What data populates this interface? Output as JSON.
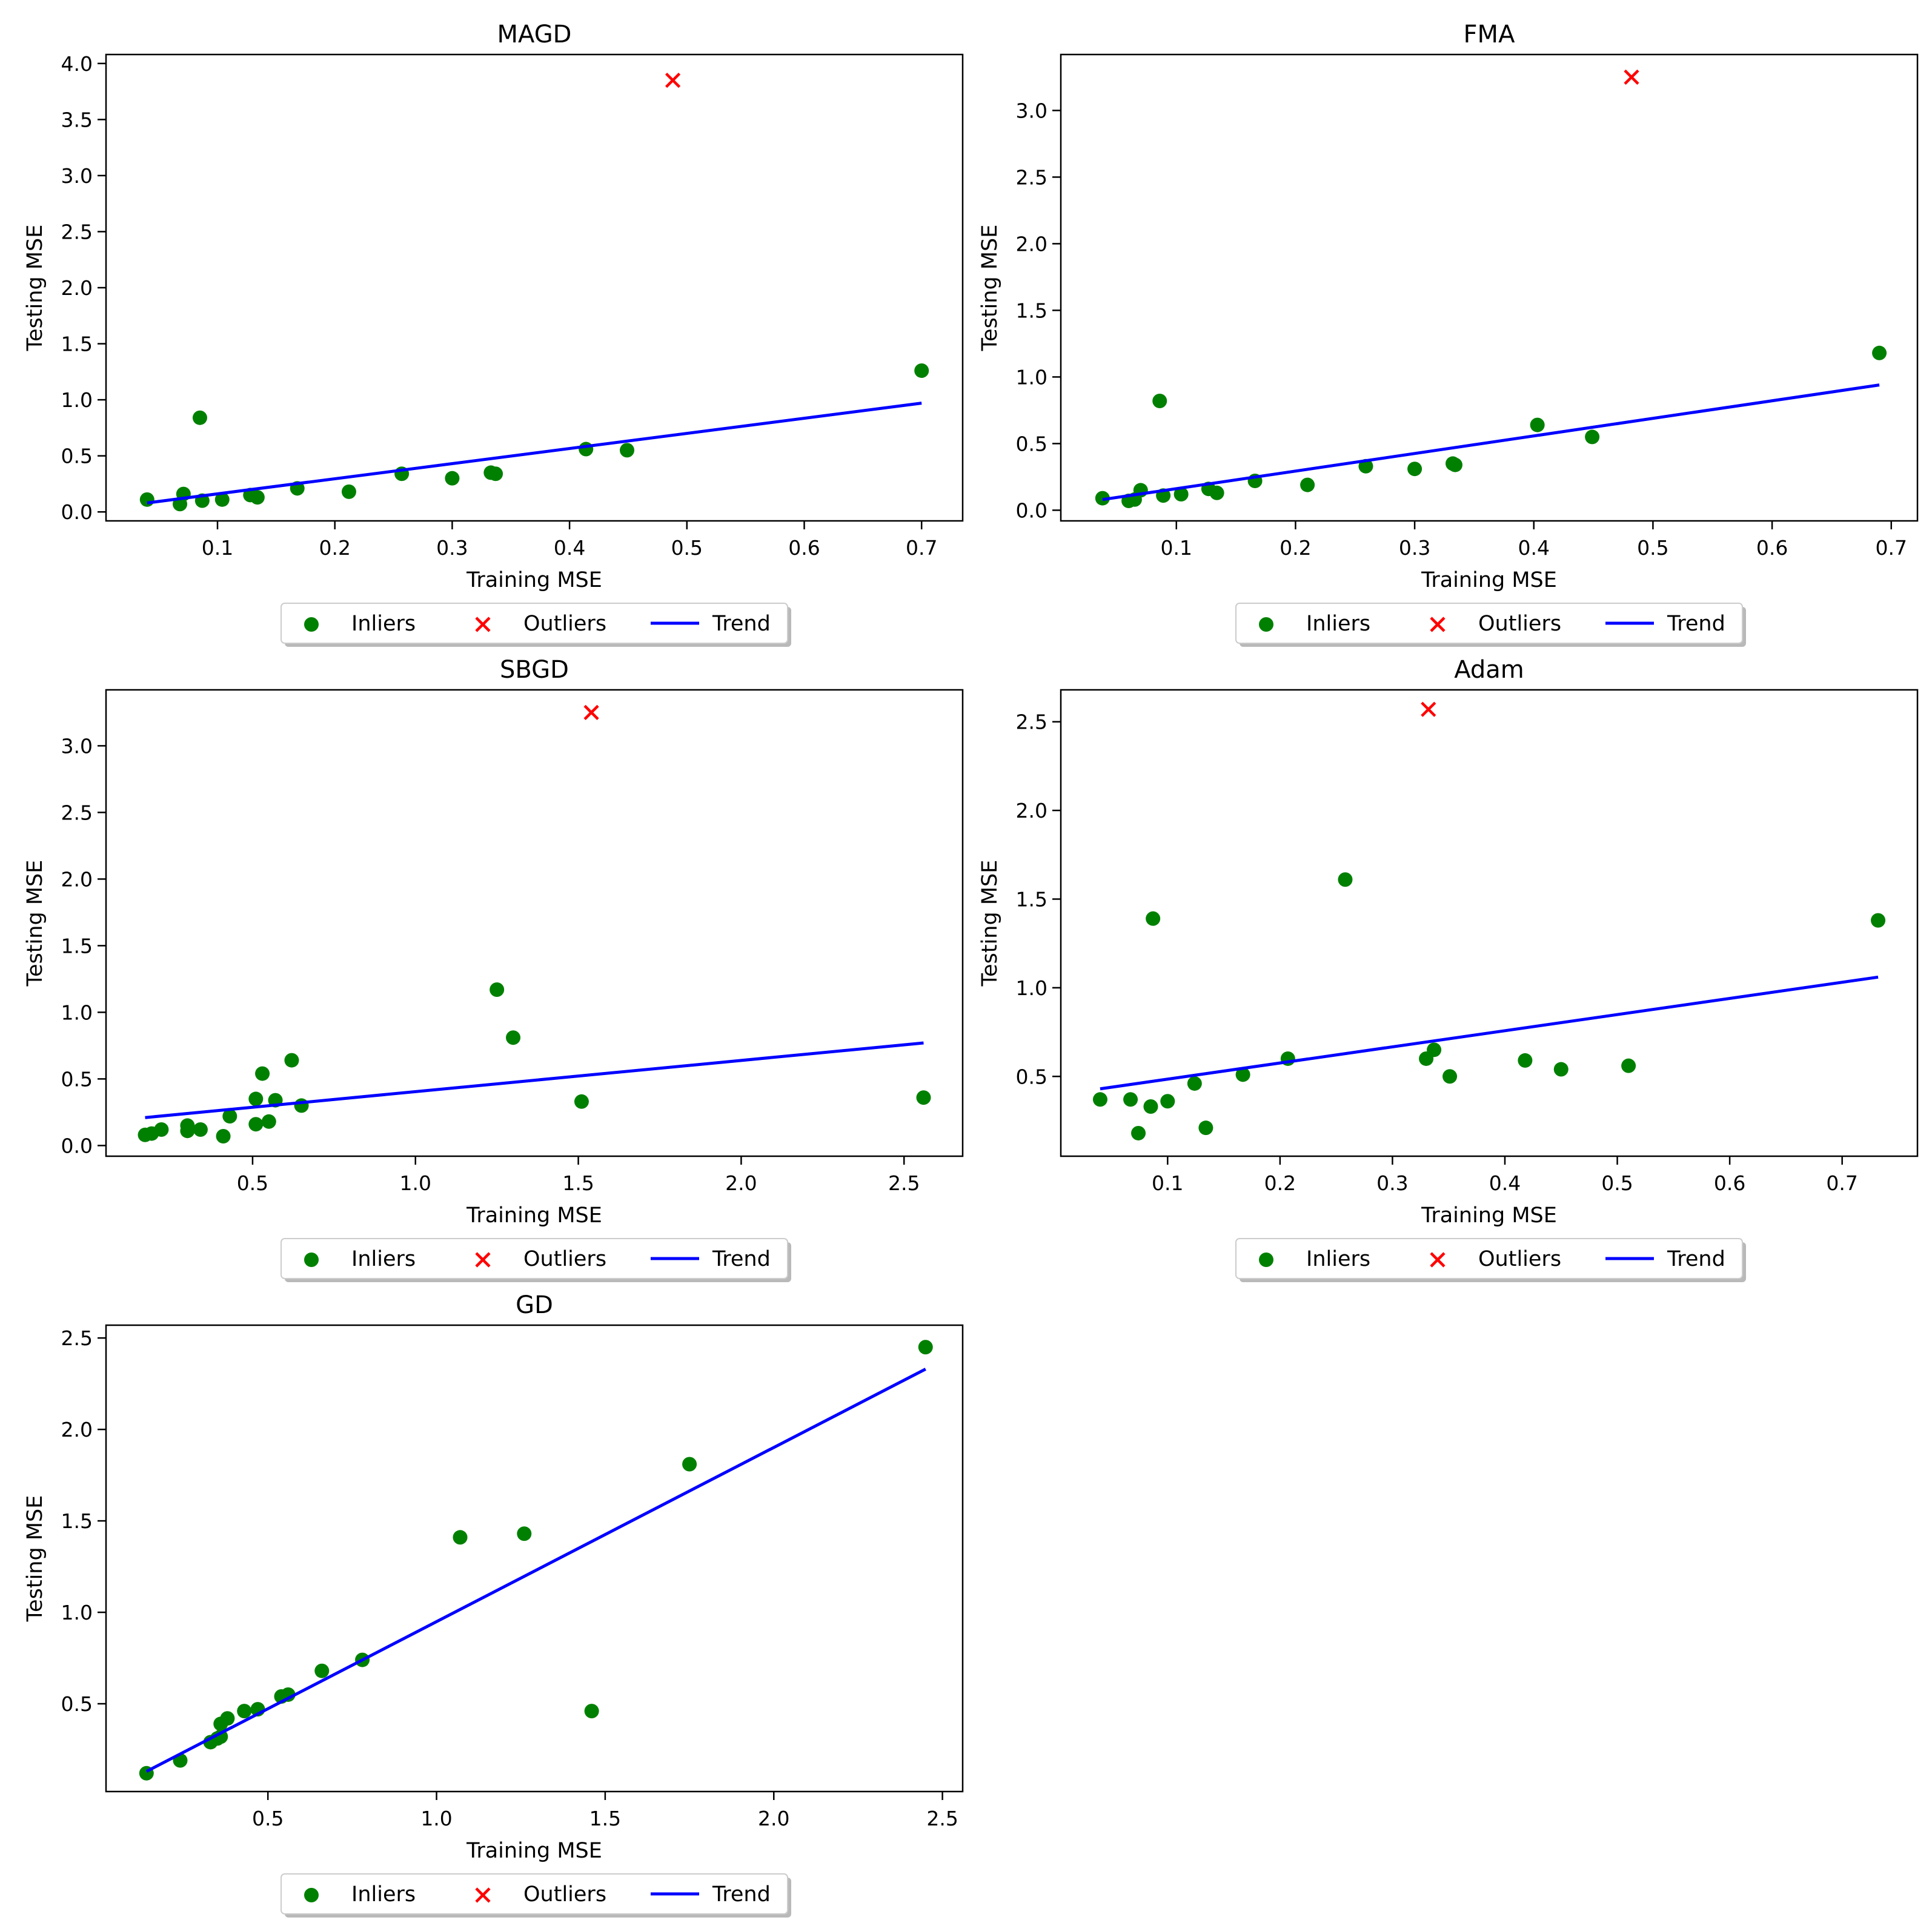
{
  "colors": {
    "inlier": "#008000",
    "outlier": "#ff0000",
    "trend": "#0000ff",
    "axis": "#000000",
    "legend_border": "#cccccc",
    "legend_shadow": "#7f7f7f"
  },
  "legend": {
    "inliers_label": "Inliers",
    "outliers_label": "Outliers",
    "trend_label": "Trend",
    "placement": "below-center"
  },
  "chart_data": [
    {
      "type": "scatter",
      "title": "MAGD",
      "xlabel": "Training MSE",
      "ylabel": "Testing MSE",
      "xlim": [
        0.005,
        0.735
      ],
      "ylim": [
        -0.08,
        4.08
      ],
      "xticks": [
        0.1,
        0.2,
        0.3,
        0.4,
        0.5,
        0.6,
        0.7
      ],
      "xtick_labels": [
        "0.1",
        "0.2",
        "0.3",
        "0.4",
        "0.5",
        "0.6",
        "0.7"
      ],
      "yticks": [
        0.0,
        0.5,
        1.0,
        1.5,
        2.0,
        2.5,
        3.0,
        3.5,
        4.0
      ],
      "ytick_labels": [
        "0.0",
        "0.5",
        "1.0",
        "1.5",
        "2.0",
        "2.5",
        "3.0",
        "3.5",
        "4.0"
      ],
      "inliers": [
        [
          0.04,
          0.11
        ],
        [
          0.068,
          0.07
        ],
        [
          0.071,
          0.16
        ],
        [
          0.085,
          0.84
        ],
        [
          0.087,
          0.1
        ],
        [
          0.104,
          0.11
        ],
        [
          0.128,
          0.15
        ],
        [
          0.134,
          0.13
        ],
        [
          0.168,
          0.21
        ],
        [
          0.212,
          0.18
        ],
        [
          0.257,
          0.34
        ],
        [
          0.3,
          0.3
        ],
        [
          0.333,
          0.35
        ],
        [
          0.337,
          0.34
        ],
        [
          0.414,
          0.56
        ],
        [
          0.449,
          0.55
        ],
        [
          0.7,
          1.26
        ]
      ],
      "outliers": [
        [
          0.488,
          3.85
        ]
      ],
      "trend": [
        [
          0.04,
          0.08
        ],
        [
          0.7,
          0.97
        ]
      ]
    },
    {
      "type": "scatter",
      "title": "FMA",
      "xlabel": "Training MSE",
      "ylabel": "Testing MSE",
      "xlim": [
        0.003,
        0.722
      ],
      "ylim": [
        -0.08,
        3.42
      ],
      "xticks": [
        0.1,
        0.2,
        0.3,
        0.4,
        0.5,
        0.6,
        0.7
      ],
      "xtick_labels": [
        "0.1",
        "0.2",
        "0.3",
        "0.4",
        "0.5",
        "0.6",
        "0.7"
      ],
      "yticks": [
        0.0,
        0.5,
        1.0,
        1.5,
        2.0,
        2.5,
        3.0
      ],
      "ytick_labels": [
        "0.0",
        "0.5",
        "1.0",
        "1.5",
        "2.0",
        "2.5",
        "3.0"
      ],
      "inliers": [
        [
          0.038,
          0.09
        ],
        [
          0.06,
          0.07
        ],
        [
          0.065,
          0.08
        ],
        [
          0.07,
          0.15
        ],
        [
          0.086,
          0.82
        ],
        [
          0.089,
          0.11
        ],
        [
          0.104,
          0.12
        ],
        [
          0.127,
          0.16
        ],
        [
          0.134,
          0.13
        ],
        [
          0.166,
          0.22
        ],
        [
          0.21,
          0.19
        ],
        [
          0.259,
          0.33
        ],
        [
          0.3,
          0.31
        ],
        [
          0.332,
          0.35
        ],
        [
          0.334,
          0.34
        ],
        [
          0.403,
          0.64
        ],
        [
          0.449,
          0.55
        ],
        [
          0.69,
          1.18
        ]
      ],
      "outliers": [
        [
          0.482,
          3.25
        ]
      ],
      "trend": [
        [
          0.038,
          0.08
        ],
        [
          0.69,
          0.94
        ]
      ]
    },
    {
      "type": "scatter",
      "title": "SBGD",
      "xlabel": "Training MSE",
      "ylabel": "Testing MSE",
      "xlim": [
        0.05,
        2.68
      ],
      "ylim": [
        -0.08,
        3.42
      ],
      "xticks": [
        0.5,
        1.0,
        1.5,
        2.0,
        2.5
      ],
      "xtick_labels": [
        "0.5",
        "1.0",
        "1.5",
        "2.0",
        "2.5"
      ],
      "yticks": [
        0.0,
        0.5,
        1.0,
        1.5,
        2.0,
        2.5,
        3.0
      ],
      "ytick_labels": [
        "0.0",
        "0.5",
        "1.0",
        "1.5",
        "2.0",
        "2.5",
        "3.0"
      ],
      "inliers": [
        [
          0.17,
          0.08
        ],
        [
          0.19,
          0.09
        ],
        [
          0.22,
          0.12
        ],
        [
          0.3,
          0.15
        ],
        [
          0.3,
          0.11
        ],
        [
          0.34,
          0.12
        ],
        [
          0.41,
          0.07
        ],
        [
          0.43,
          0.22
        ],
        [
          0.51,
          0.35
        ],
        [
          0.51,
          0.16
        ],
        [
          0.53,
          0.54
        ],
        [
          0.55,
          0.18
        ],
        [
          0.57,
          0.34
        ],
        [
          0.62,
          0.64
        ],
        [
          0.65,
          0.3
        ],
        [
          1.25,
          1.17
        ],
        [
          1.3,
          0.81
        ],
        [
          1.51,
          0.33
        ],
        [
          2.56,
          0.36
        ]
      ],
      "outliers": [
        [
          1.54,
          3.25
        ]
      ],
      "trend": [
        [
          0.17,
          0.21
        ],
        [
          2.56,
          0.77
        ]
      ]
    },
    {
      "type": "scatter",
      "title": "Adam",
      "xlabel": "Training MSE",
      "ylabel": "Testing MSE",
      "xlim": [
        0.005,
        0.767
      ],
      "ylim": [
        0.05,
        2.68
      ],
      "xticks": [
        0.1,
        0.2,
        0.3,
        0.4,
        0.5,
        0.6,
        0.7
      ],
      "xtick_labels": [
        "0.1",
        "0.2",
        "0.3",
        "0.4",
        "0.5",
        "0.6",
        "0.7"
      ],
      "yticks": [
        0.5,
        1.0,
        1.5,
        2.0,
        2.5
      ],
      "ytick_labels": [
        "0.5",
        "1.0",
        "1.5",
        "2.0",
        "2.5"
      ],
      "inliers": [
        [
          0.04,
          0.37
        ],
        [
          0.067,
          0.37
        ],
        [
          0.074,
          0.18
        ],
        [
          0.085,
          0.33
        ],
        [
          0.087,
          1.39
        ],
        [
          0.1,
          0.36
        ],
        [
          0.124,
          0.46
        ],
        [
          0.134,
          0.21
        ],
        [
          0.167,
          0.51
        ],
        [
          0.207,
          0.6
        ],
        [
          0.258,
          1.61
        ],
        [
          0.33,
          0.6
        ],
        [
          0.337,
          0.65
        ],
        [
          0.351,
          0.5
        ],
        [
          0.418,
          0.59
        ],
        [
          0.45,
          0.54
        ],
        [
          0.51,
          0.56
        ],
        [
          0.732,
          1.38
        ]
      ],
      "outliers": [
        [
          0.332,
          2.57
        ]
      ],
      "trend": [
        [
          0.04,
          0.43
        ],
        [
          0.732,
          1.06
        ]
      ]
    },
    {
      "type": "scatter",
      "title": "GD",
      "xlabel": "Training MSE",
      "ylabel": "Testing MSE",
      "xlim": [
        0.02,
        2.56
      ],
      "ylim": [
        0.02,
        2.57
      ],
      "xticks": [
        0.5,
        1.0,
        1.5,
        2.0,
        2.5
      ],
      "xtick_labels": [
        "0.5",
        "1.0",
        "1.5",
        "2.0",
        "2.5"
      ],
      "yticks": [
        0.5,
        1.0,
        1.5,
        2.0,
        2.5
      ],
      "ytick_labels": [
        "0.5",
        "1.0",
        "1.5",
        "2.0",
        "2.5"
      ],
      "inliers": [
        [
          0.14,
          0.12
        ],
        [
          0.24,
          0.19
        ],
        [
          0.33,
          0.29
        ],
        [
          0.35,
          0.31
        ],
        [
          0.36,
          0.32
        ],
        [
          0.36,
          0.39
        ],
        [
          0.38,
          0.42
        ],
        [
          0.43,
          0.46
        ],
        [
          0.47,
          0.47
        ],
        [
          0.54,
          0.54
        ],
        [
          0.56,
          0.55
        ],
        [
          0.66,
          0.68
        ],
        [
          0.78,
          0.74
        ],
        [
          1.07,
          1.41
        ],
        [
          1.26,
          1.43
        ],
        [
          1.46,
          0.46
        ],
        [
          1.75,
          1.81
        ],
        [
          2.45,
          2.45
        ]
      ],
      "outliers": [],
      "trend": [
        [
          0.14,
          0.13
        ],
        [
          2.45,
          2.33
        ]
      ]
    }
  ]
}
